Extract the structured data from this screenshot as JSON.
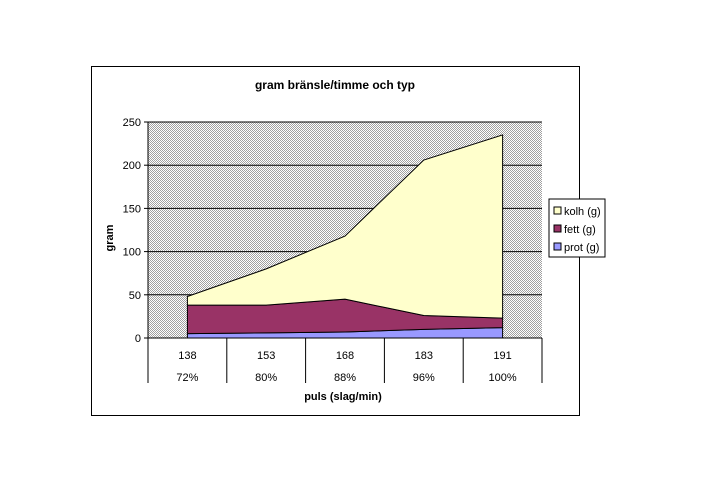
{
  "chart_data": {
    "type": "area",
    "stacked": true,
    "title": "gram bränsle/timme och typ",
    "xlabel": "puls (slag/min)",
    "ylabel": "gram",
    "categories": [
      "138",
      "153",
      "168",
      "183",
      "191"
    ],
    "categories_secondary": [
      "72%",
      "80%",
      "88%",
      "96%",
      "100%"
    ],
    "ylim": [
      0,
      250
    ],
    "yticks": [
      0,
      50,
      100,
      150,
      200,
      250
    ],
    "grid": true,
    "legend_position": "right",
    "series": [
      {
        "name": "prot (g)",
        "values": [
          5,
          6,
          7,
          10,
          12
        ],
        "color": "#9999ff"
      },
      {
        "name": "fett (g)",
        "values": [
          33,
          32,
          38,
          16,
          11
        ],
        "color": "#993366"
      },
      {
        "name": "kolh (g)",
        "values": [
          10,
          42,
          73,
          180,
          212
        ],
        "color": "#ffffcc"
      }
    ],
    "legend_order": [
      "kolh (g)",
      "fett (g)",
      "prot (g)"
    ],
    "plot_background": "#c0c0c0"
  }
}
